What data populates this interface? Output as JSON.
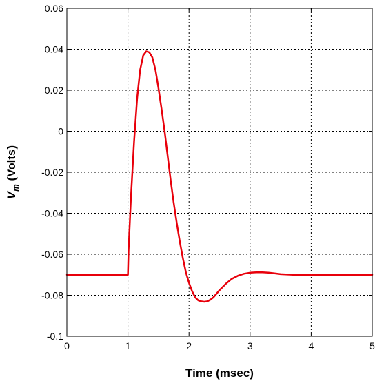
{
  "chart_data": {
    "type": "line",
    "title": "",
    "xlabel": "Time (msec)",
    "ylabel": {
      "symbol": "V",
      "subscript": "m",
      "unit": " (Volts)"
    },
    "xlim": [
      0,
      5
    ],
    "ylim": [
      -0.1,
      0.06
    ],
    "xticks": [
      0,
      1,
      2,
      3,
      4,
      5
    ],
    "xtick_labels": [
      "0",
      "1",
      "2",
      "3",
      "4",
      "5"
    ],
    "yticks": [
      0.06,
      0.04,
      0.02,
      0,
      -0.02,
      -0.04,
      -0.06,
      -0.08,
      -0.1
    ],
    "ytick_labels": [
      "0.06",
      "0.04",
      "0.02",
      "0",
      "-0.02",
      "-0.04",
      "-0.06",
      "-0.08",
      "-0.1"
    ],
    "grid": true,
    "colors": {
      "series": "#e8000b",
      "axis": "#000000",
      "background": "#ffffff"
    },
    "series": [
      {
        "x": [
          0,
          0.5,
          1.0,
          1.01,
          1.05,
          1.1,
          1.15,
          1.2,
          1.25,
          1.3,
          1.35,
          1.4,
          1.45,
          1.5,
          1.55,
          1.6,
          1.65,
          1.7,
          1.75,
          1.8,
          1.85,
          1.9,
          1.95,
          2.0,
          2.05,
          2.1,
          2.15,
          2.2,
          2.25,
          2.3,
          2.35,
          2.4,
          2.5,
          2.6,
          2.7,
          2.8,
          2.9,
          3.0,
          3.1,
          3.2,
          3.3,
          3.4,
          3.5,
          3.7,
          4.0,
          4.5,
          5.0
        ],
        "y": [
          -0.07,
          -0.07,
          -0.07,
          -0.058,
          -0.032,
          -0.005,
          0.016,
          0.03,
          0.037,
          0.039,
          0.0385,
          0.036,
          0.03,
          0.021,
          0.011,
          0.0,
          -0.012,
          -0.024,
          -0.035,
          -0.045,
          -0.054,
          -0.062,
          -0.069,
          -0.074,
          -0.078,
          -0.081,
          -0.0825,
          -0.083,
          -0.0832,
          -0.083,
          -0.0822,
          -0.081,
          -0.0775,
          -0.0745,
          -0.072,
          -0.0705,
          -0.0695,
          -0.069,
          -0.0688,
          -0.0688,
          -0.069,
          -0.0693,
          -0.0697,
          -0.07,
          -0.07,
          -0.07,
          -0.07
        ]
      }
    ]
  }
}
